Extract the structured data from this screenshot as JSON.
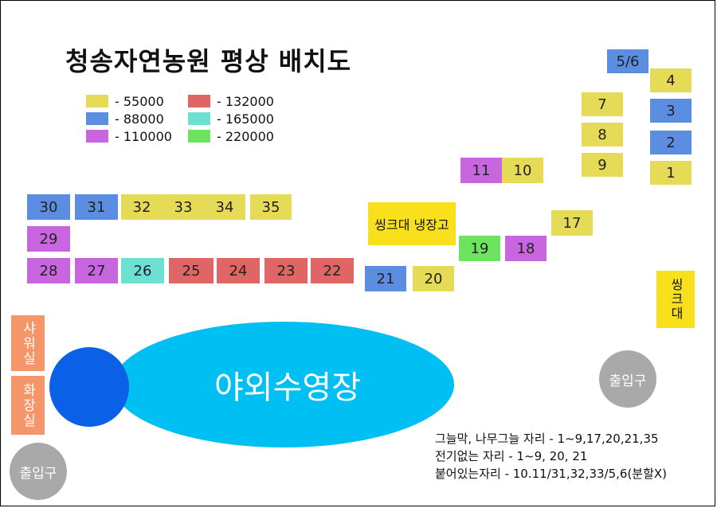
{
  "title": "청송자연농원 평상 배치도",
  "colors": {
    "p55000": "#e6db57",
    "p88000": "#5b8ee0",
    "p110000": "#c866e0",
    "p132000": "#e06565",
    "p165000": "#6ce0d3",
    "p220000": "#6ee35f"
  },
  "legend": [
    {
      "label": "-  55000",
      "price": 55000,
      "color": "#e6db57"
    },
    {
      "label": "-  88000",
      "price": 88000,
      "color": "#5b8ee0"
    },
    {
      "label": "- 110000",
      "price": 110000,
      "color": "#c866e0"
    },
    {
      "label": "- 132000",
      "price": 132000,
      "color": "#e06565"
    },
    {
      "label": "- 165000",
      "price": 165000,
      "color": "#6ce0d3"
    },
    {
      "label": "- 220000",
      "price": 220000,
      "color": "#6ee35f"
    }
  ],
  "plots": [
    {
      "id": "5/6",
      "price": 88000
    },
    {
      "id": "4",
      "price": 55000
    },
    {
      "id": "7",
      "price": 55000
    },
    {
      "id": "3",
      "price": 88000
    },
    {
      "id": "8",
      "price": 55000
    },
    {
      "id": "2",
      "price": 88000
    },
    {
      "id": "9",
      "price": 55000
    },
    {
      "id": "1",
      "price": 55000
    },
    {
      "id": "11",
      "price": 110000
    },
    {
      "id": "10",
      "price": 55000
    },
    {
      "id": "17",
      "price": 55000
    },
    {
      "id": "19",
      "price": 220000
    },
    {
      "id": "18",
      "price": 110000
    },
    {
      "id": "21",
      "price": 88000
    },
    {
      "id": "20",
      "price": 55000
    },
    {
      "id": "30",
      "price": 88000
    },
    {
      "id": "31",
      "price": 88000
    },
    {
      "id": "32",
      "price": 55000
    },
    {
      "id": "33",
      "price": 55000
    },
    {
      "id": "34",
      "price": 55000
    },
    {
      "id": "35",
      "price": 55000
    },
    {
      "id": "29",
      "price": 110000
    },
    {
      "id": "28",
      "price": 110000
    },
    {
      "id": "27",
      "price": 110000
    },
    {
      "id": "26",
      "price": 165000
    },
    {
      "id": "25",
      "price": 132000
    },
    {
      "id": "24",
      "price": 132000
    },
    {
      "id": "23",
      "price": 132000
    },
    {
      "id": "22",
      "price": 132000
    }
  ],
  "fixtures": {
    "sink_fridge": "씽크대 냉장고",
    "sink": "씽크대"
  },
  "facilities": {
    "shower": "샤워실",
    "restroom": "화장실"
  },
  "pool_label": "야외수영장",
  "exits": {
    "left": "출입구",
    "right": "출입구"
  },
  "notes": [
    "그늘막, 나무그늘 자리 - 1~9,17,20,21,35",
    "전기없는 자리 - 1~9, 20, 21",
    "붙어있는자리 - 10.11/31,32,33/5,6(분할X)"
  ]
}
